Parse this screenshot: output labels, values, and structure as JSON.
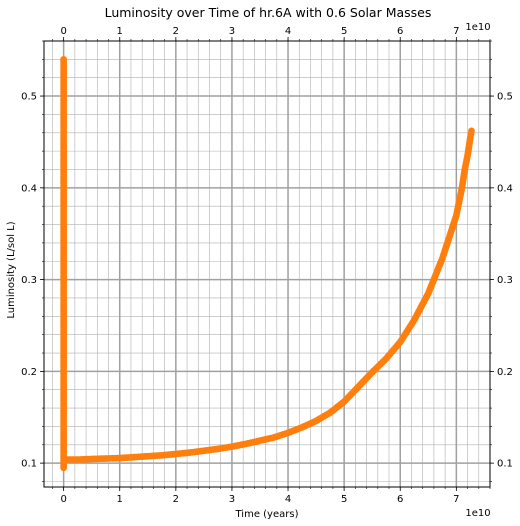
{
  "chart_data": {
    "type": "scatter",
    "title": "Luminosity over Time of hr.6A with 0.6 Solar Masses",
    "xlabel": "Time (years)",
    "ylabel": "Luminosity (L/sol L)",
    "x_offset_label": "1e10",
    "x_unit_scale": 10000000000,
    "xlim": [
      -0.35,
      7.6
    ],
    "ylim": [
      0.074,
      0.56
    ],
    "x_ticks": [
      0,
      1,
      2,
      3,
      4,
      5,
      6,
      7
    ],
    "x_tick_labels": [
      "0",
      "1",
      "2",
      "3",
      "4",
      "5",
      "6",
      "7"
    ],
    "y_ticks": [
      0.1,
      0.2,
      0.3,
      0.4,
      0.5
    ],
    "y_tick_labels": [
      "0.1",
      "0.2",
      "0.3",
      "0.4",
      "0.5"
    ],
    "grid": true,
    "grid_minor": true,
    "legend": "none",
    "marker_color": "#ff7f0e",
    "series": [
      {
        "x_units": "1e10 years",
        "x": [
          0.0,
          0.0,
          0.0,
          0.0,
          0.0,
          0.0,
          0.0,
          0.0,
          0.0,
          0.0,
          0.0,
          0.0,
          0.0,
          0.0,
          0.0,
          0.0,
          0.0,
          0.0,
          0.0,
          0.0,
          0.0,
          0.0,
          0.0,
          0.0,
          0.0,
          0.0,
          0.0,
          0.0,
          0.0,
          0.0,
          0.0,
          0.0,
          0.0,
          0.0,
          0.0,
          0.0,
          0.0,
          0.0,
          0.0,
          0.0,
          0.0,
          0.0,
          0.0,
          0.0,
          0.0,
          0.0,
          0.0,
          0.0,
          0.005,
          0.01,
          0.02,
          0.05,
          0.1,
          0.2,
          0.3,
          0.5,
          0.75,
          1.0,
          1.25,
          1.5,
          1.75,
          2.0,
          2.25,
          2.5,
          2.75,
          3.0,
          3.25,
          3.5,
          3.75,
          4.0,
          4.25,
          4.5,
          4.75,
          5.0,
          5.25,
          5.5,
          5.75,
          6.0,
          6.25,
          6.5,
          6.75,
          6.9,
          7.0,
          7.1,
          7.15,
          7.2,
          7.25,
          7.27
        ],
        "y": [
          0.54,
          0.53,
          0.52,
          0.51,
          0.5,
          0.49,
          0.48,
          0.47,
          0.46,
          0.45,
          0.44,
          0.43,
          0.42,
          0.41,
          0.4,
          0.39,
          0.38,
          0.37,
          0.36,
          0.35,
          0.34,
          0.33,
          0.32,
          0.31,
          0.3,
          0.29,
          0.28,
          0.27,
          0.26,
          0.25,
          0.24,
          0.23,
          0.22,
          0.21,
          0.2,
          0.19,
          0.18,
          0.17,
          0.16,
          0.15,
          0.14,
          0.13,
          0.12,
          0.11,
          0.105,
          0.1,
          0.097,
          0.095,
          0.103,
          0.104,
          0.104,
          0.104,
          0.104,
          0.104,
          0.104,
          0.1045,
          0.105,
          0.1055,
          0.1065,
          0.1075,
          0.1085,
          0.11,
          0.1115,
          0.1135,
          0.1155,
          0.118,
          0.121,
          0.1245,
          0.128,
          0.133,
          0.139,
          0.146,
          0.155,
          0.167,
          0.183,
          0.199,
          0.214,
          0.232,
          0.256,
          0.285,
          0.323,
          0.351,
          0.37,
          0.4,
          0.42,
          0.435,
          0.455,
          0.462
        ]
      }
    ]
  }
}
